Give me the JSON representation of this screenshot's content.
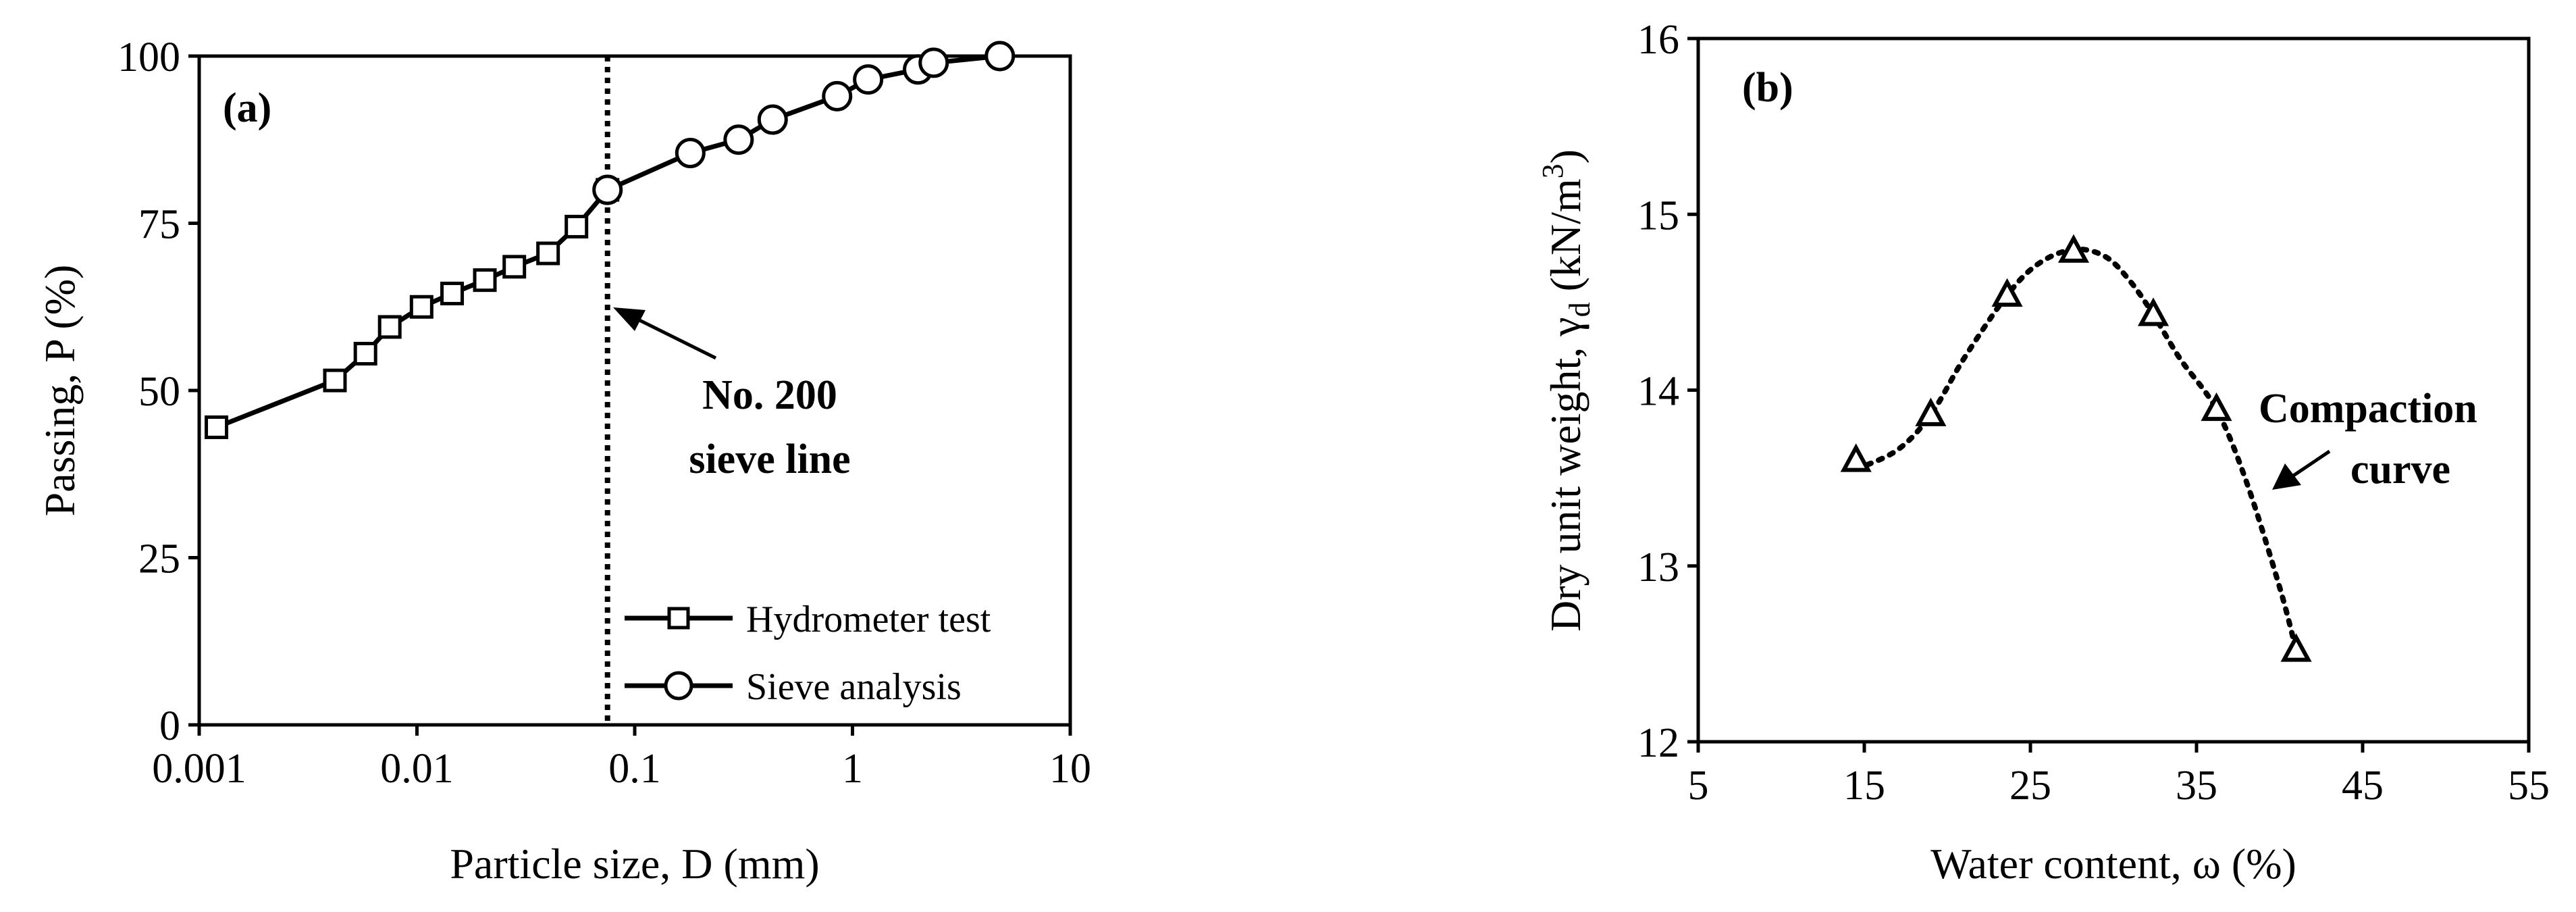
{
  "chart_data": [
    {
      "panel_label": "(a)",
      "type": "line",
      "x_scale": "log",
      "xlabel": "Particle size, D (mm)",
      "ylabel": "Passing, P (%)",
      "xlim": [
        0.001,
        10
      ],
      "ylim": [
        0,
        100
      ],
      "x_ticks": [
        0.001,
        0.01,
        0.1,
        1,
        10
      ],
      "x_tick_labels": [
        "0.001",
        "0.01",
        "0.1",
        "1",
        "10"
      ],
      "y_ticks": [
        0,
        25,
        50,
        75,
        100
      ],
      "y_tick_labels": [
        "0",
        "25",
        "50",
        "75",
        "100"
      ],
      "grid": false,
      "legend_position": "bottom-right",
      "series": [
        {
          "name": "Hydrometer test",
          "marker": "square",
          "x": [
            0.0012,
            0.0042,
            0.0058,
            0.0075,
            0.0105,
            0.0145,
            0.0205,
            0.028,
            0.04,
            0.054,
            0.075
          ],
          "y": [
            44.5,
            51.5,
            55.5,
            59.5,
            62.5,
            64.5,
            66.5,
            68.5,
            70.5,
            74.5,
            80
          ]
        },
        {
          "name": "Sieve analysis",
          "marker": "circle",
          "x": [
            0.075,
            0.18,
            0.3,
            0.43,
            0.85,
            1.18,
            2.0,
            2.36,
            4.75
          ],
          "y": [
            80,
            85.5,
            87.5,
            90.5,
            94,
            96.5,
            98,
            99,
            100
          ]
        }
      ],
      "reference_line": {
        "x": 0.075,
        "style": "dotted"
      },
      "annotation": {
        "lines": [
          "No. 200",
          "sieve line"
        ]
      }
    },
    {
      "panel_label": "(b)",
      "type": "scatter",
      "xlabel": "Water content, ω (%)",
      "ylabel": "Dry unit weight, γd (kN/m3)",
      "ylabel_parts": {
        "main": "Dry unit weight, γ",
        "sub": "d",
        "mid": " (kN/m",
        "sup": "3",
        "end": ")"
      },
      "xlim": [
        5,
        55
      ],
      "ylim": [
        12,
        16
      ],
      "x_ticks": [
        5,
        15,
        25,
        35,
        45,
        55
      ],
      "x_tick_labels": [
        "5",
        "15",
        "25",
        "35",
        "45",
        "55"
      ],
      "y_ticks": [
        12,
        13,
        14,
        15,
        16
      ],
      "y_tick_labels": [
        "12",
        "13",
        "14",
        "15",
        "16"
      ],
      "grid": false,
      "series": [
        {
          "marker": "triangle",
          "x": [
            14.5,
            19.0,
            23.6,
            27.6,
            32.4,
            36.2,
            41.0
          ],
          "y": [
            13.6,
            13.86,
            14.54,
            14.79,
            14.43,
            13.89,
            12.52
          ]
        }
      ],
      "fit_curve": {
        "style": "dotted",
        "x": [
          14.5,
          17,
          19,
          21,
          23.6,
          25.5,
          27.6,
          29.5,
          31,
          32.4,
          34,
          36.2,
          38,
          40,
          41.0
        ],
        "y": [
          13.55,
          13.66,
          13.86,
          14.18,
          14.54,
          14.72,
          14.8,
          14.76,
          14.62,
          14.43,
          14.18,
          13.89,
          13.48,
          12.88,
          12.52
        ]
      },
      "annotation": {
        "lines": [
          "Compaction",
          "curve"
        ]
      }
    }
  ]
}
